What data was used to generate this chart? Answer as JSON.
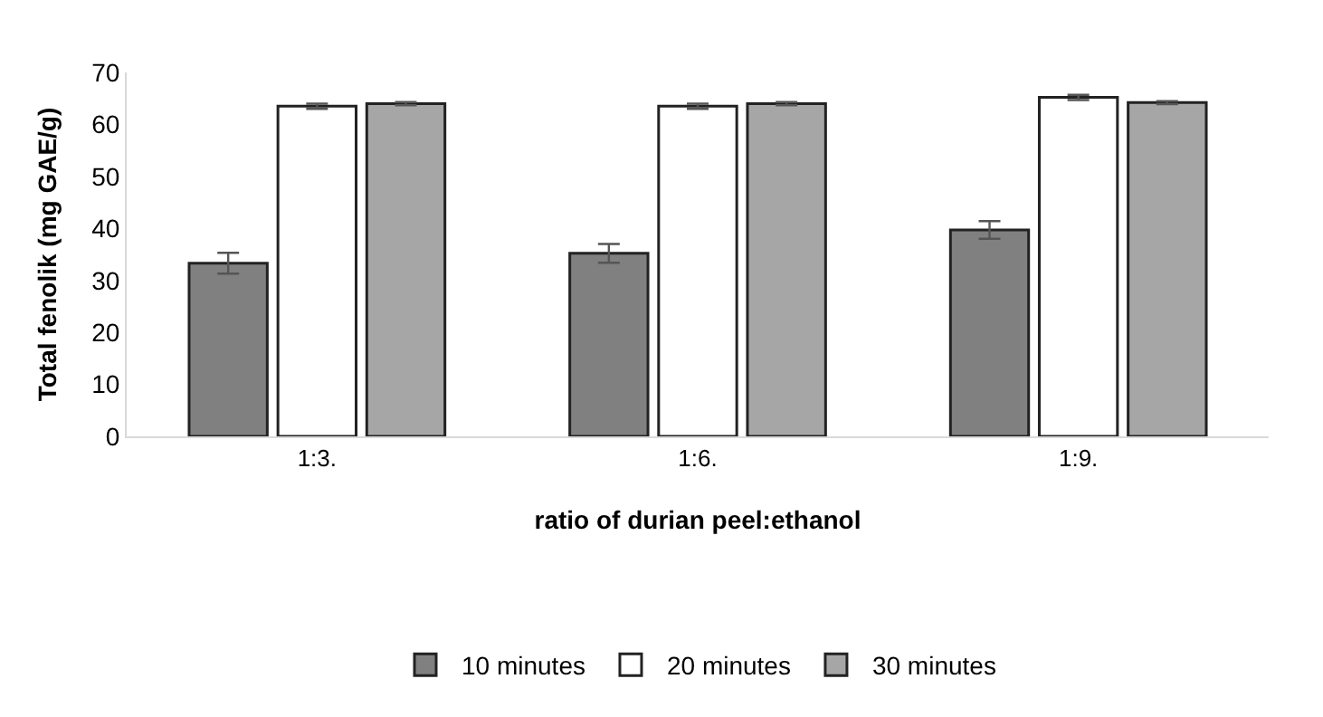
{
  "chart_data": {
    "type": "bar",
    "xlabel": "ratio of durian peel:ethanol",
    "ylabel": "Total fenolik (mg GAE/g)",
    "categories": [
      "1:3.",
      "1:6.",
      "1:9."
    ],
    "series": [
      {
        "name": "10 minutes",
        "color": "#808080",
        "values": [
          33.3,
          35.2,
          39.7
        ],
        "errors": [
          2,
          1.8,
          1.7
        ]
      },
      {
        "name": "20 minutes",
        "color": "#ffffff",
        "values": [
          63.5,
          63.5,
          65.2
        ],
        "errors": [
          0.5,
          0.5,
          0.5
        ]
      },
      {
        "name": "30 minutes",
        "color": "#a6a6a6",
        "values": [
          64,
          64,
          64.2
        ],
        "errors": [
          0.3,
          0.3,
          0.3
        ]
      }
    ],
    "ylim": [
      0,
      70
    ],
    "yticks": [
      0,
      10,
      20,
      30,
      40,
      50,
      60,
      70
    ],
    "legend": "bottom"
  }
}
